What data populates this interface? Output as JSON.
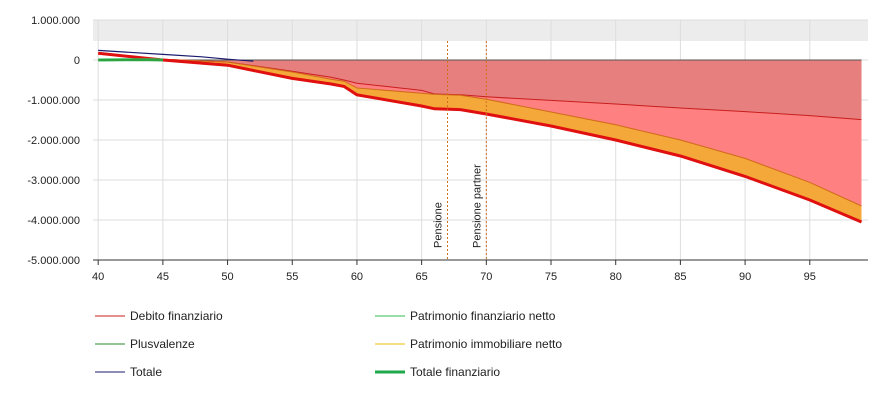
{
  "chart_data": {
    "type": "area",
    "x_ticks": [
      40,
      45,
      50,
      55,
      60,
      65,
      70,
      75,
      80,
      85,
      90,
      95
    ],
    "y_ticks": [
      1000000,
      0,
      -1000000,
      -2000000,
      -3000000,
      -4000000,
      -5000000
    ],
    "y_tick_labels": [
      "1.000.000",
      "0",
      "-1.000.000",
      "-2.000.000",
      "-3.000.000",
      "-4.000.000",
      "-5.000.000"
    ],
    "xlim": [
      39.6,
      99.5
    ],
    "ylim": [
      -5000000,
      1000000
    ],
    "plot_band_above": 1000000,
    "grid": true,
    "vertical_markers": [
      {
        "x": 67,
        "label": "Pensione"
      },
      {
        "x": 70,
        "label": "Pensione partner"
      }
    ],
    "colors": {
      "area_debito": "#e87f7f",
      "area_lower": "#ff8080",
      "area_immobiliare": "#f5a83a",
      "debito_line": "#c81e1e",
      "totale_finanziario_line": "#e01010",
      "totale_line": "#1a1a6e",
      "plusvalenze_line": "#2a8a2a",
      "patrimonio_netto_line": "#33bb55",
      "immobiliare_line": "#e8c000",
      "marker": "#d0701a",
      "grid": "#dddddd",
      "band": "#ececec"
    },
    "series": [
      {
        "name": "Debito finanziario",
        "x": [
          40,
          45,
          50,
          55,
          58,
          59,
          60,
          65,
          66,
          68,
          70,
          75,
          80,
          85,
          90,
          95,
          99
        ],
        "values": [
          150000,
          20000,
          -50000,
          -280000,
          -430000,
          -500000,
          -580000,
          -760000,
          -850000,
          -870000,
          -920000,
          -1010000,
          -1100000,
          -1200000,
          -1290000,
          -1390000,
          -1490000
        ]
      },
      {
        "name": "Patrimonio immobiliare netto",
        "x": [
          40,
          45,
          50,
          55,
          58,
          59,
          60,
          65,
          66,
          68,
          70,
          75,
          80,
          85,
          90,
          95,
          99
        ],
        "values": [
          150000,
          20000,
          -50000,
          -300000,
          -480000,
          -530000,
          -700000,
          -830000,
          -860000,
          -880000,
          -980000,
          -1300000,
          -1620000,
          -2000000,
          -2460000,
          -3060000,
          -3650000
        ]
      },
      {
        "name": "Totale finanziario",
        "x": [
          40,
          45,
          50,
          55,
          58,
          59,
          60,
          65,
          66,
          68,
          70,
          75,
          80,
          85,
          90,
          95,
          99
        ],
        "values": [
          170000,
          0,
          -130000,
          -460000,
          -600000,
          -660000,
          -870000,
          -1150000,
          -1220000,
          -1240000,
          -1350000,
          -1650000,
          -2000000,
          -2400000,
          -2910000,
          -3500000,
          -4050000
        ]
      },
      {
        "name": "Totale",
        "x": [
          40,
          42,
          45,
          48,
          50,
          52
        ],
        "values": [
          240000,
          200000,
          140000,
          80000,
          20000,
          -30000
        ]
      },
      {
        "name": "Plusvalenze",
        "x": [
          40,
          42,
          44,
          45
        ],
        "values": [
          0,
          5000,
          5000,
          0
        ]
      },
      {
        "name": "Patrimonio finanziario netto",
        "x": [
          40,
          45
        ],
        "values": [
          0,
          0
        ]
      }
    ],
    "legend": [
      {
        "label": "Debito finanziario",
        "color": "#c81e1e",
        "width": 1
      },
      {
        "label": "Patrimonio finanziario netto",
        "color": "#33bb55",
        "width": 1
      },
      {
        "label": "Plusvalenze",
        "color": "#2a8a2a",
        "width": 1
      },
      {
        "label": "Patrimonio immobiliare netto",
        "color": "#e8c000",
        "width": 1
      },
      {
        "label": "Totale",
        "color": "#1a1a6e",
        "width": 1
      },
      {
        "label": "Totale finanziario",
        "color": "#1fa84a",
        "width": 3
      }
    ],
    "legend_placement": "bottom"
  }
}
